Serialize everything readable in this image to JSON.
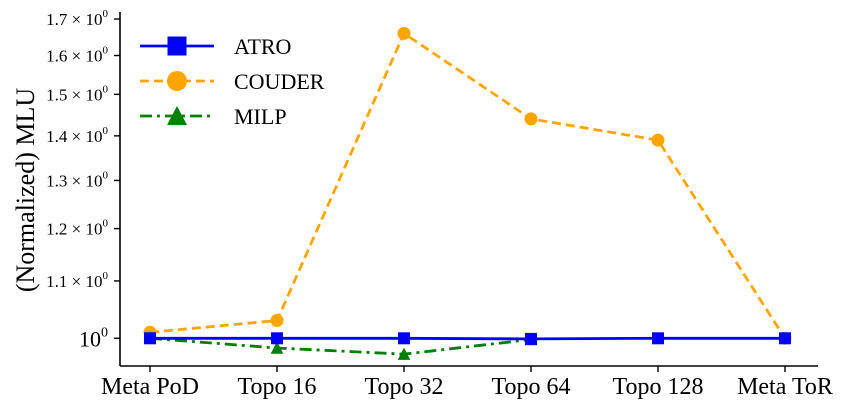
{
  "chart_data": {
    "type": "line",
    "title": "",
    "xlabel": "",
    "ylabel": "(Normalized) MLU",
    "yscale": "log",
    "ylim": [
      0.955,
      1.72
    ],
    "categories": [
      "Meta PoD",
      "Topo 16",
      "Topo 32",
      "Topo 64",
      "Topo 128",
      "Meta ToR"
    ],
    "y_ticks": [
      {
        "value": 1.0,
        "base": "10",
        "exp": "0"
      },
      {
        "value": 1.1,
        "base": "1.1 × 10",
        "exp": "0"
      },
      {
        "value": 1.2,
        "base": "1.2 × 10",
        "exp": "0"
      },
      {
        "value": 1.3,
        "base": "1.3 × 10",
        "exp": "0"
      },
      {
        "value": 1.4,
        "base": "1.4 × 10",
        "exp": "0"
      },
      {
        "value": 1.5,
        "base": "1.5 × 10",
        "exp": "0"
      },
      {
        "value": 1.6,
        "base": "1.6 × 10",
        "exp": "0"
      },
      {
        "value": 1.7,
        "base": "1.7 × 10",
        "exp": "0"
      }
    ],
    "grid": false,
    "legend_position": "top-left",
    "series": [
      {
        "name": "ATRO",
        "color": "#0000ff",
        "marker": "square",
        "linestyle": "solid",
        "values": [
          1.0,
          1.0,
          1.0,
          0.999,
          1.0,
          1.0
        ]
      },
      {
        "name": "COUDER",
        "color": "#ffa500",
        "marker": "circle",
        "linestyle": "dashed",
        "values": [
          1.01,
          1.03,
          1.66,
          1.44,
          1.39,
          1.0
        ]
      },
      {
        "name": "MILP",
        "color": "#008000",
        "marker": "triangle",
        "linestyle": "dashdot",
        "values": [
          1.0,
          0.984,
          0.974,
          0.998,
          null,
          null
        ]
      }
    ]
  }
}
